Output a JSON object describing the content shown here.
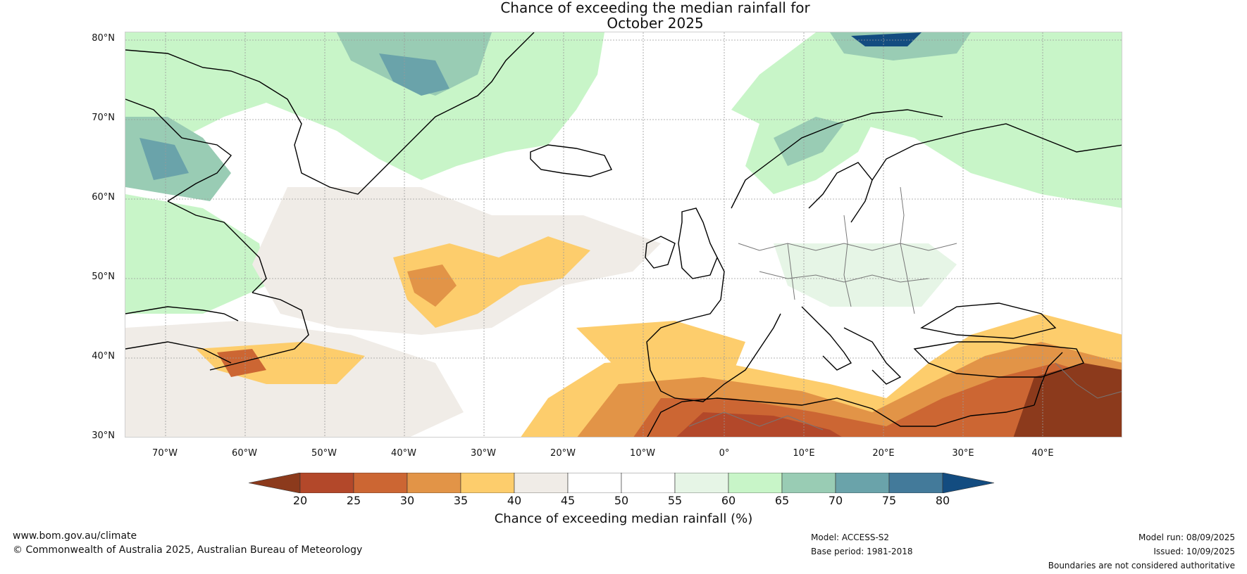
{
  "title": {
    "line1": "Chance of exceeding the median rainfall for",
    "line2": "October 2025"
  },
  "map": {
    "lat_labels": [
      "80°N",
      "70°N",
      "60°N",
      "50°N",
      "40°N",
      "30°N"
    ],
    "lon_labels": [
      "70°W",
      "60°W",
      "50°W",
      "40°W",
      "30°W",
      "20°W",
      "10°W",
      "0°",
      "10°E",
      "20°E",
      "30°E",
      "40°E"
    ],
    "lat_range": [
      30,
      81
    ],
    "lon_range": [
      -75,
      50
    ]
  },
  "colorbar": {
    "ticks": [
      "20",
      "25",
      "30",
      "35",
      "40",
      "45",
      "50",
      "55",
      "60",
      "65",
      "70",
      "75",
      "80"
    ],
    "colors": [
      "#8c3a1c",
      "#b3482a",
      "#cc6633",
      "#e29447",
      "#fdcd6c",
      "#f0ece7",
      "#ffffff",
      "#ffffff",
      "#e6f5e6",
      "#c8f5c8",
      "#99ccb4",
      "#6aa3aa",
      "#437a9a",
      "#134c80"
    ],
    "label": "Chance of exceeding median rainfall (%)"
  },
  "footer": {
    "website": "www.bom.gov.au/climate",
    "copyright": "© Commonwealth of Australia 2025, Australian Bureau of Meteorology",
    "model": "Model: ACCESS-S2",
    "base_period": "Base period: 1981-2018",
    "model_run": "Model run: 08/09/2025",
    "issued": "Issued: 10/09/2025",
    "disclaimer": "Boundaries are not considered authoritative"
  }
}
